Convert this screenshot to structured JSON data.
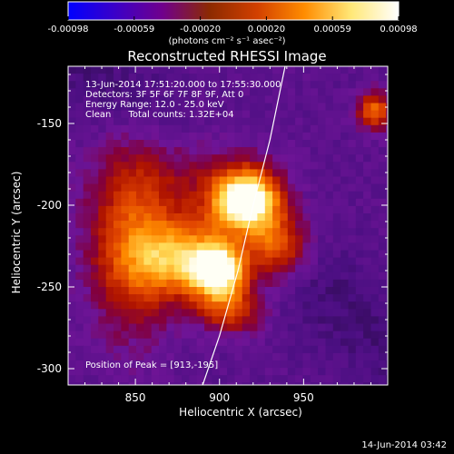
{
  "colorbar": {
    "ticks": [
      "-0.00098",
      "-0.00059",
      "-0.00020",
      "0.00020",
      "0.00059",
      "0.00098"
    ],
    "units_text": "(photons cm⁻² s⁻¹ asec⁻²)",
    "colors": [
      "#0000ff",
      "#3b00c8",
      "#70008c",
      "#8c2a00",
      "#d24000",
      "#ff8c00",
      "#ffe878",
      "#ffffff"
    ]
  },
  "chart_data": {
    "type": "heatmap",
    "title": "Reconstructed RHESSI Image",
    "xlabel": "Heliocentric X (arcsec)",
    "ylabel": "Heliocentric Y (arcsec)",
    "xlim": [
      810,
      1000
    ],
    "ylim": [
      -310,
      -115
    ],
    "x_ticks": [
      850,
      900,
      950
    ],
    "y_ticks": [
      -150,
      -200,
      -250,
      -300
    ],
    "info_lines": [
      "13-Jun-2014 17:51:20.000 to 17:55:30.000",
      "Detectors: 3F 5F 6F 7F 8F 9F, Att 0",
      "Energy Range: 12.0 - 25.0 keV",
      "Clean      Total counts: 1.32E+04"
    ],
    "peak_label": "Position of Peak = [913,-195]",
    "peak": [
      913,
      -195
    ],
    "limb_curve": {
      "x": [
        939,
        930,
        920,
        911,
        900,
        890
      ],
      "y": [
        -115,
        -160,
        -200,
        -240,
        -280,
        -310
      ]
    },
    "sources": [
      {
        "x": 913,
        "y": -195,
        "level": 1.0,
        "sx": 14,
        "sy": 13
      },
      {
        "x": 897,
        "y": -238,
        "level": 0.78,
        "sx": 11,
        "sy": 11
      },
      {
        "x": 875,
        "y": -230,
        "level": 0.55,
        "sx": 22,
        "sy": 17
      },
      {
        "x": 932,
        "y": -222,
        "level": 0.45,
        "sx": 13,
        "sy": 14
      },
      {
        "x": 905,
        "y": -262,
        "level": 0.35,
        "sx": 13,
        "sy": 10
      },
      {
        "x": 845,
        "y": -220,
        "level": 0.35,
        "sx": 18,
        "sy": 40
      },
      {
        "x": 880,
        "y": -180,
        "level": 0.2,
        "sx": 30,
        "sy": 20
      },
      {
        "x": 990,
        "y": -140,
        "level": 0.45,
        "sx": 7,
        "sy": 8
      }
    ]
  },
  "footer_date": "14-Jun-2014 03:42"
}
